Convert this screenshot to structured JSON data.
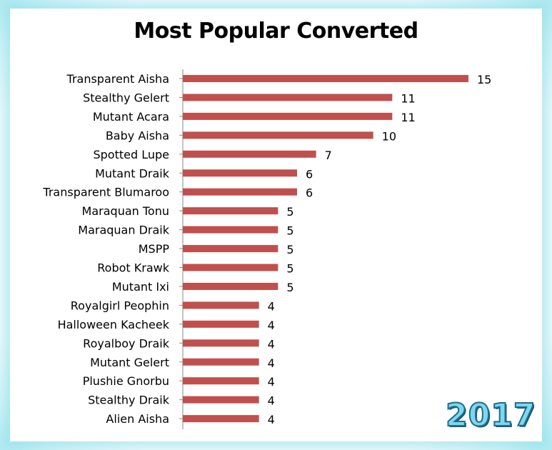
{
  "chart_data": {
    "type": "bar",
    "orientation": "horizontal",
    "title": "Most Popular Converted",
    "categories": [
      "Transparent Aisha",
      "Stealthy Gelert",
      "Mutant Acara",
      "Baby Aisha",
      "Spotted Lupe",
      "Mutant Draik",
      "Transparent Blumaroo",
      "Maraquan Tonu",
      "Maraquan Draik",
      "MSPP",
      "Robot Krawk",
      "Mutant Ixi",
      "Royalgirl Peophin",
      "Halloween Kacheek",
      "Royalboy Draik",
      "Mutant Gelert",
      "Plushie Gnorbu",
      "Stealthy Draik",
      "Alien Aisha"
    ],
    "values": [
      15,
      11,
      11,
      10,
      7,
      6,
      6,
      5,
      5,
      5,
      5,
      5,
      4,
      4,
      4,
      4,
      4,
      4,
      4
    ],
    "xlim": [
      0,
      15
    ],
    "bar_color": "#c0504d",
    "grid": false,
    "data_labels": true
  },
  "badge": {
    "year": "2017"
  },
  "colors": {
    "frame_glow": "#7fd6ef",
    "badge_fill": "#7fd6ef",
    "badge_outline": "#1f6e8a"
  }
}
